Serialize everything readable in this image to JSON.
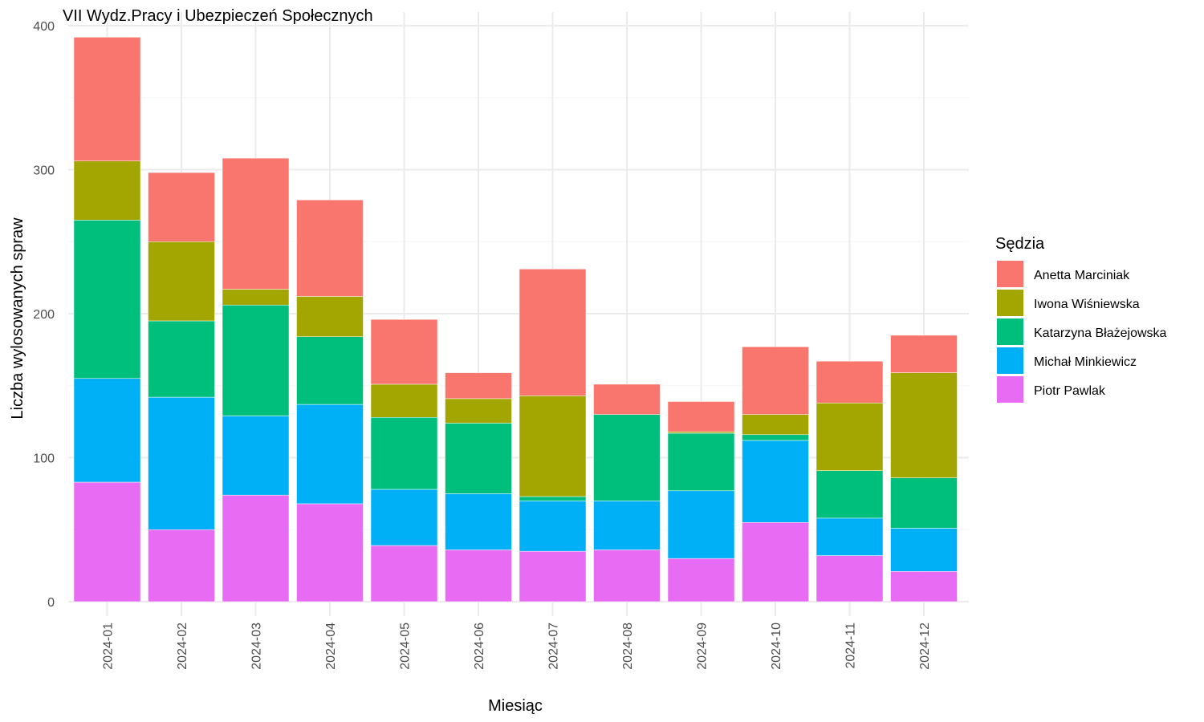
{
  "chart_data": {
    "type": "bar",
    "stacked": true,
    "title": "VII Wydz.Pracy i Ubezpieczeń Społecznych",
    "xlabel": "Miesiąc",
    "ylabel": "Liczba wylosowanych spraw",
    "ylim": [
      0,
      400
    ],
    "yticks": [
      0,
      100,
      200,
      300,
      400
    ],
    "grid": true,
    "legend": {
      "title": "Sędzia",
      "position": "right"
    },
    "categories": [
      "2024-01",
      "2024-02",
      "2024-03",
      "2024-04",
      "2024-05",
      "2024-06",
      "2024-07",
      "2024-08",
      "2024-09",
      "2024-10",
      "2024-11",
      "2024-12"
    ],
    "series": [
      {
        "name": "Piotr Pawlak",
        "color": "#E76BF3",
        "values": [
          83,
          50,
          74,
          68,
          39,
          36,
          35,
          36,
          30,
          55,
          32,
          21
        ]
      },
      {
        "name": "Michał Minkiewicz",
        "color": "#00B0F6",
        "values": [
          72,
          92,
          55,
          69,
          39,
          39,
          35,
          34,
          47,
          57,
          26,
          30
        ]
      },
      {
        "name": "Katarzyna Błażejowska",
        "color": "#00BF7D",
        "values": [
          110,
          53,
          77,
          47,
          50,
          49,
          3,
          60,
          40,
          4,
          33,
          35
        ]
      },
      {
        "name": "Iwona Wiśniewska",
        "color": "#A3A500",
        "values": [
          41,
          55,
          11,
          28,
          23,
          17,
          70,
          0,
          1,
          14,
          47,
          73
        ]
      },
      {
        "name": "Anetta Marciniak",
        "color": "#F8766D",
        "values": [
          86,
          48,
          91,
          67,
          45,
          18,
          88,
          21,
          21,
          47,
          29,
          26
        ]
      }
    ],
    "legend_order": [
      "Anetta Marciniak",
      "Iwona Wiśniewska",
      "Katarzyna Błażejowska",
      "Michał Minkiewicz",
      "Piotr Pawlak"
    ]
  }
}
